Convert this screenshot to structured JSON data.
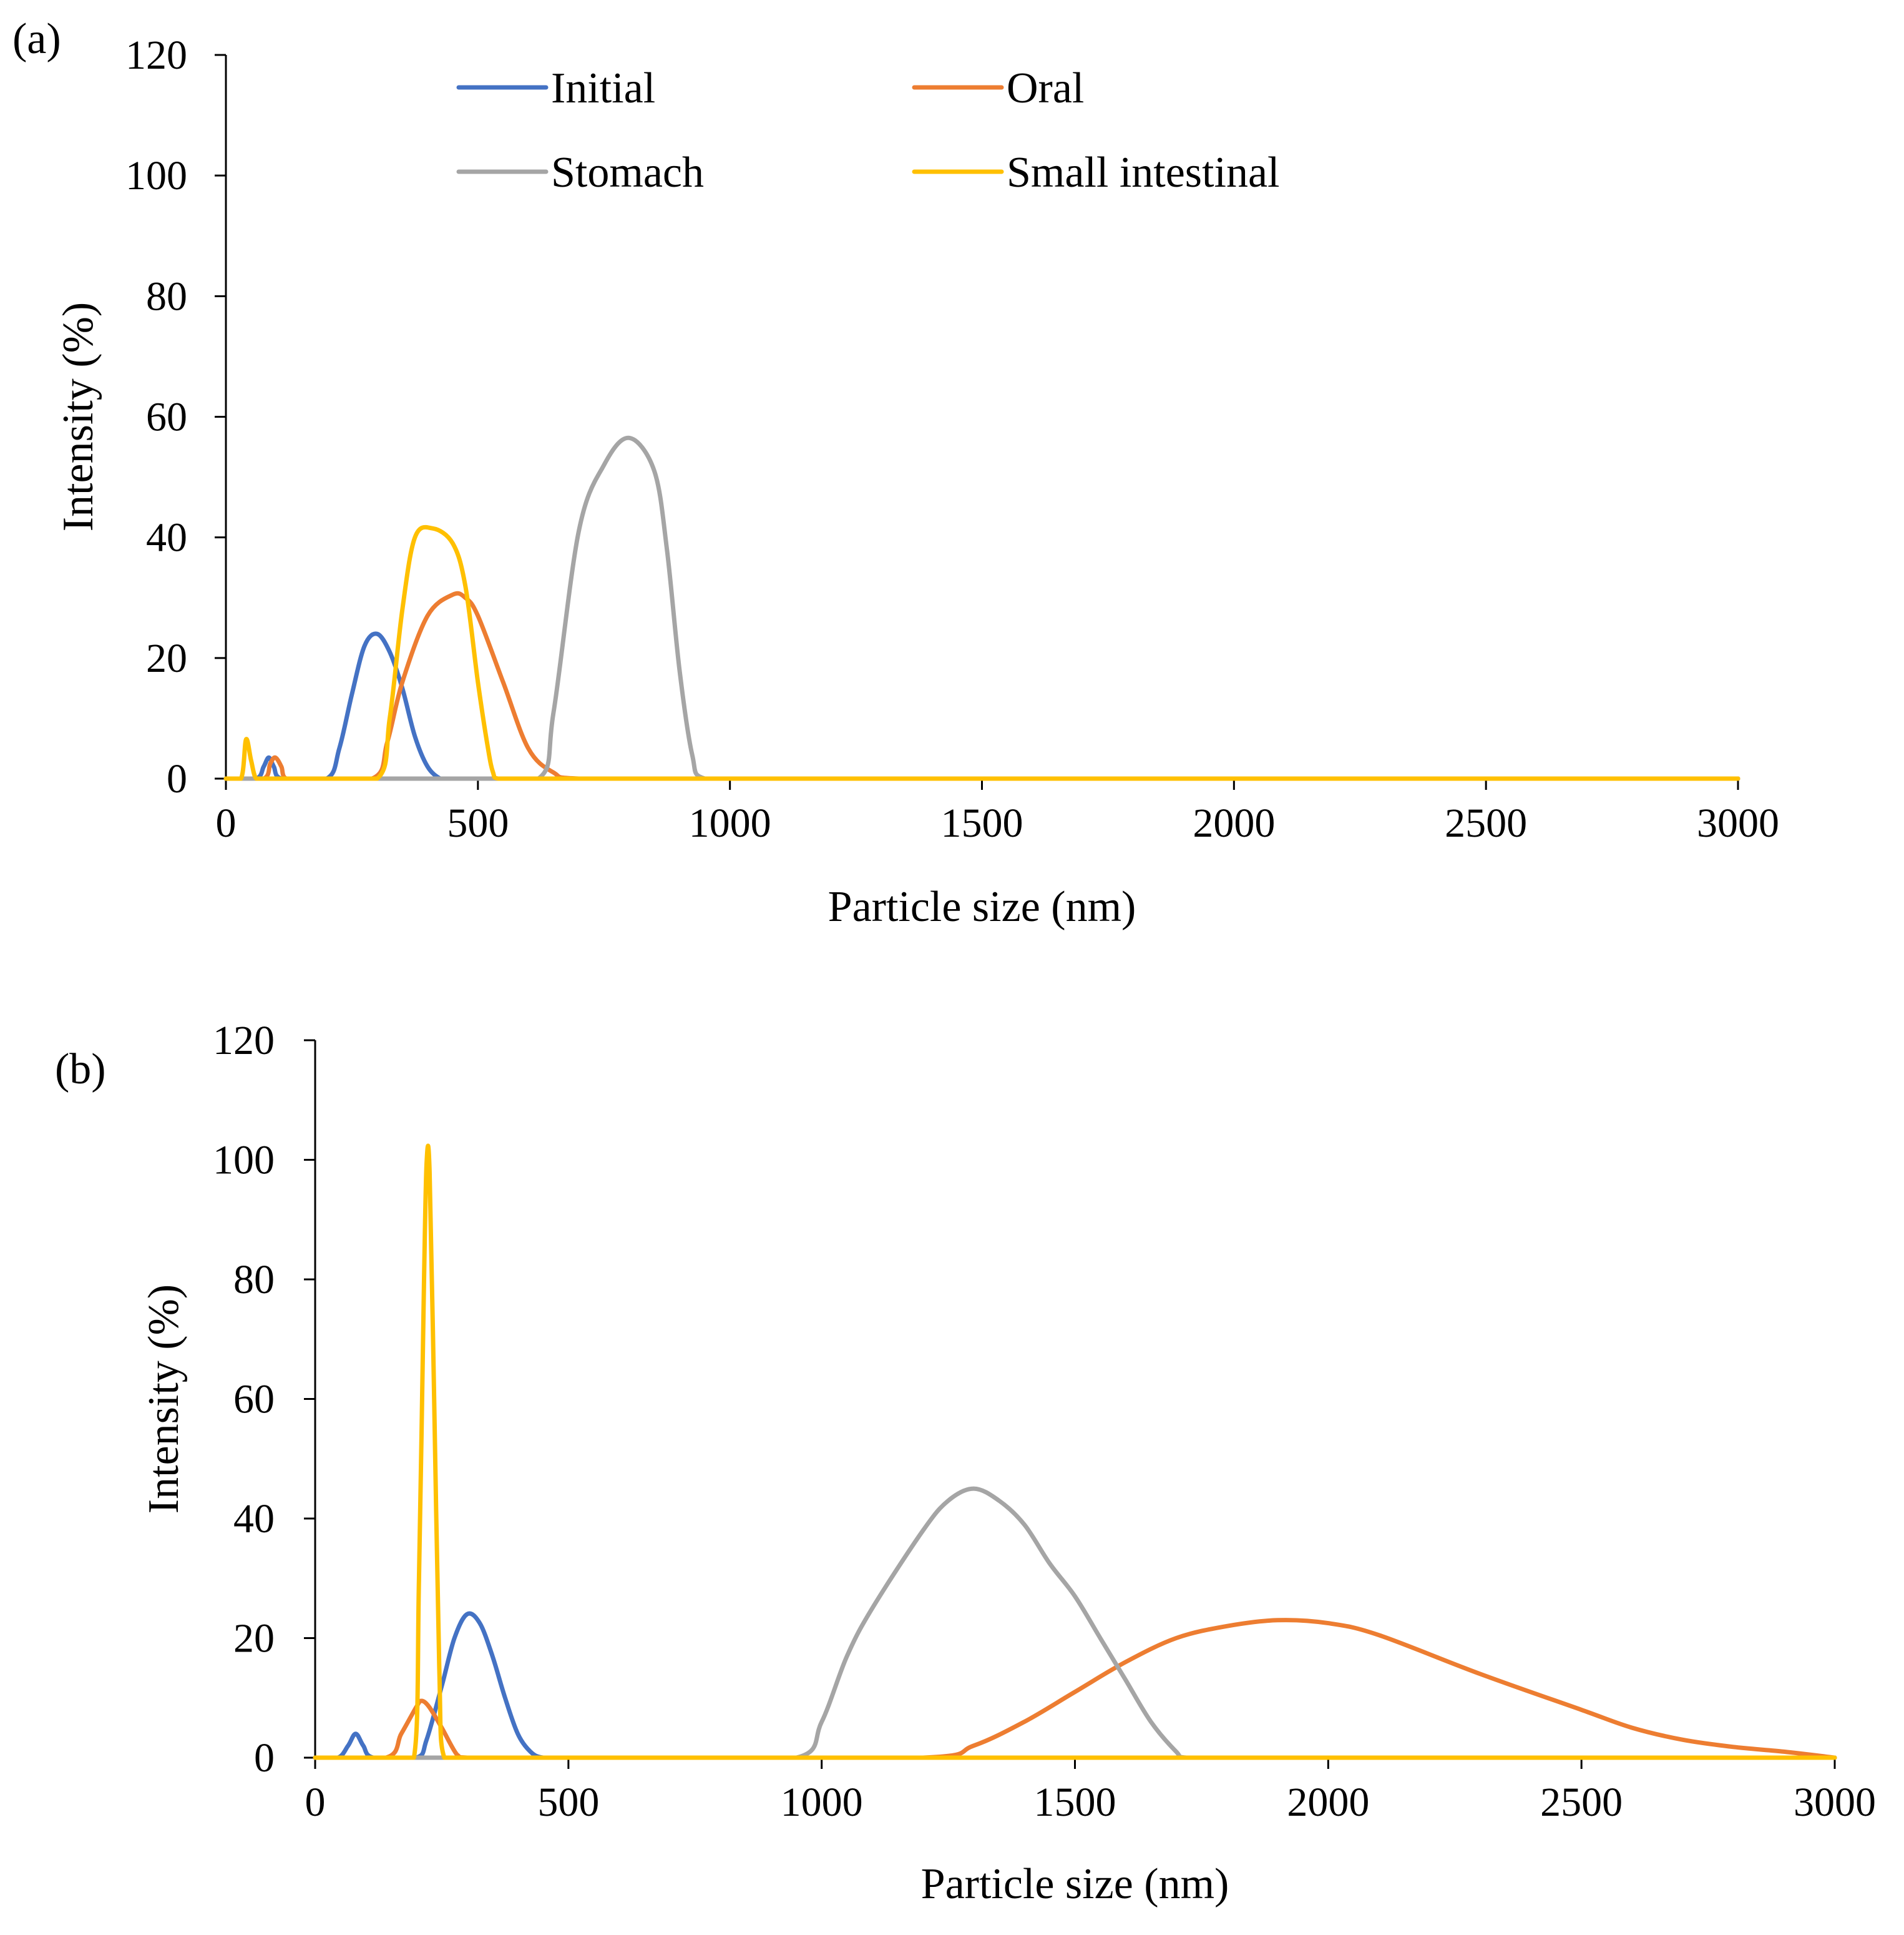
{
  "chart_data": [
    {
      "panel_label": "(a)",
      "type": "line",
      "xlabel": "Particle size (nm)",
      "ylabel": "Intensity (%)",
      "xlim": [
        0,
        3000
      ],
      "ylim": [
        0,
        120
      ],
      "xticks": [
        "0",
        "500",
        "1000",
        "1500",
        "2000",
        "2500",
        "3000"
      ],
      "yticks": [
        "0",
        "20",
        "40",
        "60",
        "80",
        "100",
        "120"
      ],
      "grid": false,
      "legend": "top",
      "series": [
        {
          "name": "Initial",
          "color": "#4472C4",
          "x": [
            0,
            60,
            75,
            85,
            95,
            110,
            200,
            225,
            250,
            275,
            300,
            325,
            350,
            375,
            400,
            425,
            440,
            3000
          ],
          "y": [
            0,
            0,
            2,
            3.5,
            2,
            0,
            0,
            5,
            14,
            22,
            24,
            21,
            15,
            7,
            2,
            0,
            0,
            0
          ]
        },
        {
          "name": "Oral",
          "color": "#ED7D31",
          "x": [
            0,
            75,
            88,
            98,
            110,
            120,
            290,
            320,
            350,
            400,
            450,
            475,
            500,
            550,
            600,
            650,
            700,
            3000
          ],
          "y": [
            0,
            0,
            2.5,
            3.5,
            2,
            0,
            0,
            6,
            16,
            27,
            30.5,
            30,
            27,
            16,
            5,
            1,
            0,
            0
          ]
        },
        {
          "name": "Stomach",
          "color": "#A5A5A5",
          "x": [
            0,
            620,
            650,
            700,
            750,
            800,
            850,
            875,
            900,
            925,
            950,
            3000
          ],
          "y": [
            0,
            0,
            11,
            41,
            52,
            56.5,
            51,
            38,
            18,
            4,
            0,
            0
          ]
        },
        {
          "name": "Small intestinal",
          "color": "#FFC000",
          "x": [
            0,
            30,
            40,
            50,
            60,
            80,
            300,
            325,
            350,
            375,
            410,
            450,
            475,
            500,
            520,
            530,
            540,
            3000
          ],
          "y": [
            0,
            0,
            6.5,
            3,
            0,
            0,
            0,
            10,
            28,
            40,
            41.5,
            39,
            32,
            16,
            5,
            1,
            0,
            0
          ]
        }
      ]
    },
    {
      "panel_label": "(b)",
      "type": "line",
      "xlabel": "Particle size (nm)",
      "ylabel": "Intensity (%)",
      "xlim": [
        0,
        3000
      ],
      "ylim": [
        0,
        120
      ],
      "xticks": [
        "0",
        "500",
        "1000",
        "1500",
        "2000",
        "2500",
        "3000"
      ],
      "yticks": [
        "0",
        "20",
        "40",
        "60",
        "80",
        "100",
        "120"
      ],
      "grid": false,
      "series": [
        {
          "name": "Initial",
          "color": "#4472C4",
          "x": [
            0,
            45,
            65,
            80,
            95,
            115,
            200,
            220,
            250,
            275,
            300,
            325,
            350,
            375,
            400,
            425,
            450,
            500,
            3000
          ],
          "y": [
            0,
            0,
            2,
            4,
            2,
            0,
            0,
            3,
            12,
            20,
            24,
            22.5,
            17,
            10,
            4,
            1,
            0,
            0,
            0
          ]
        },
        {
          "name": "Oral",
          "color": "#ED7D31",
          "x": [
            0,
            140,
            170,
            200,
            210,
            225,
            250,
            280,
            300,
            1200,
            1300,
            1400,
            1500,
            1600,
            1700,
            1800,
            1900,
            2000,
            2100,
            2300,
            2500,
            2600,
            2700,
            2800,
            2900,
            3000
          ],
          "y": [
            0,
            0,
            4,
            8.5,
            9.5,
            8.5,
            5,
            0.5,
            0,
            0,
            2,
            6,
            11,
            16,
            20,
            22,
            23,
            22.5,
            20.5,
            14,
            8,
            5,
            3,
            1.8,
            1,
            0
          ]
        },
        {
          "name": "Stomach",
          "color": "#A5A5A5",
          "x": [
            0,
            950,
            1000,
            1050,
            1100,
            1200,
            1250,
            1300,
            1350,
            1400,
            1450,
            1500,
            1550,
            1600,
            1650,
            1700,
            1720,
            3000
          ],
          "y": [
            0,
            0,
            6,
            17,
            25,
            38,
            43,
            45,
            43,
            39,
            32.5,
            27,
            20,
            13,
            6,
            1,
            0,
            0
          ]
        },
        {
          "name": "Small intestinal",
          "color": "#FFC000",
          "x": [
            0,
            195,
            205,
            215,
            220,
            226,
            235,
            245,
            255,
            3000
          ],
          "y": [
            0,
            0,
            30,
            80,
            99.5,
            98,
            60,
            15,
            0,
            0
          ]
        }
      ]
    }
  ]
}
